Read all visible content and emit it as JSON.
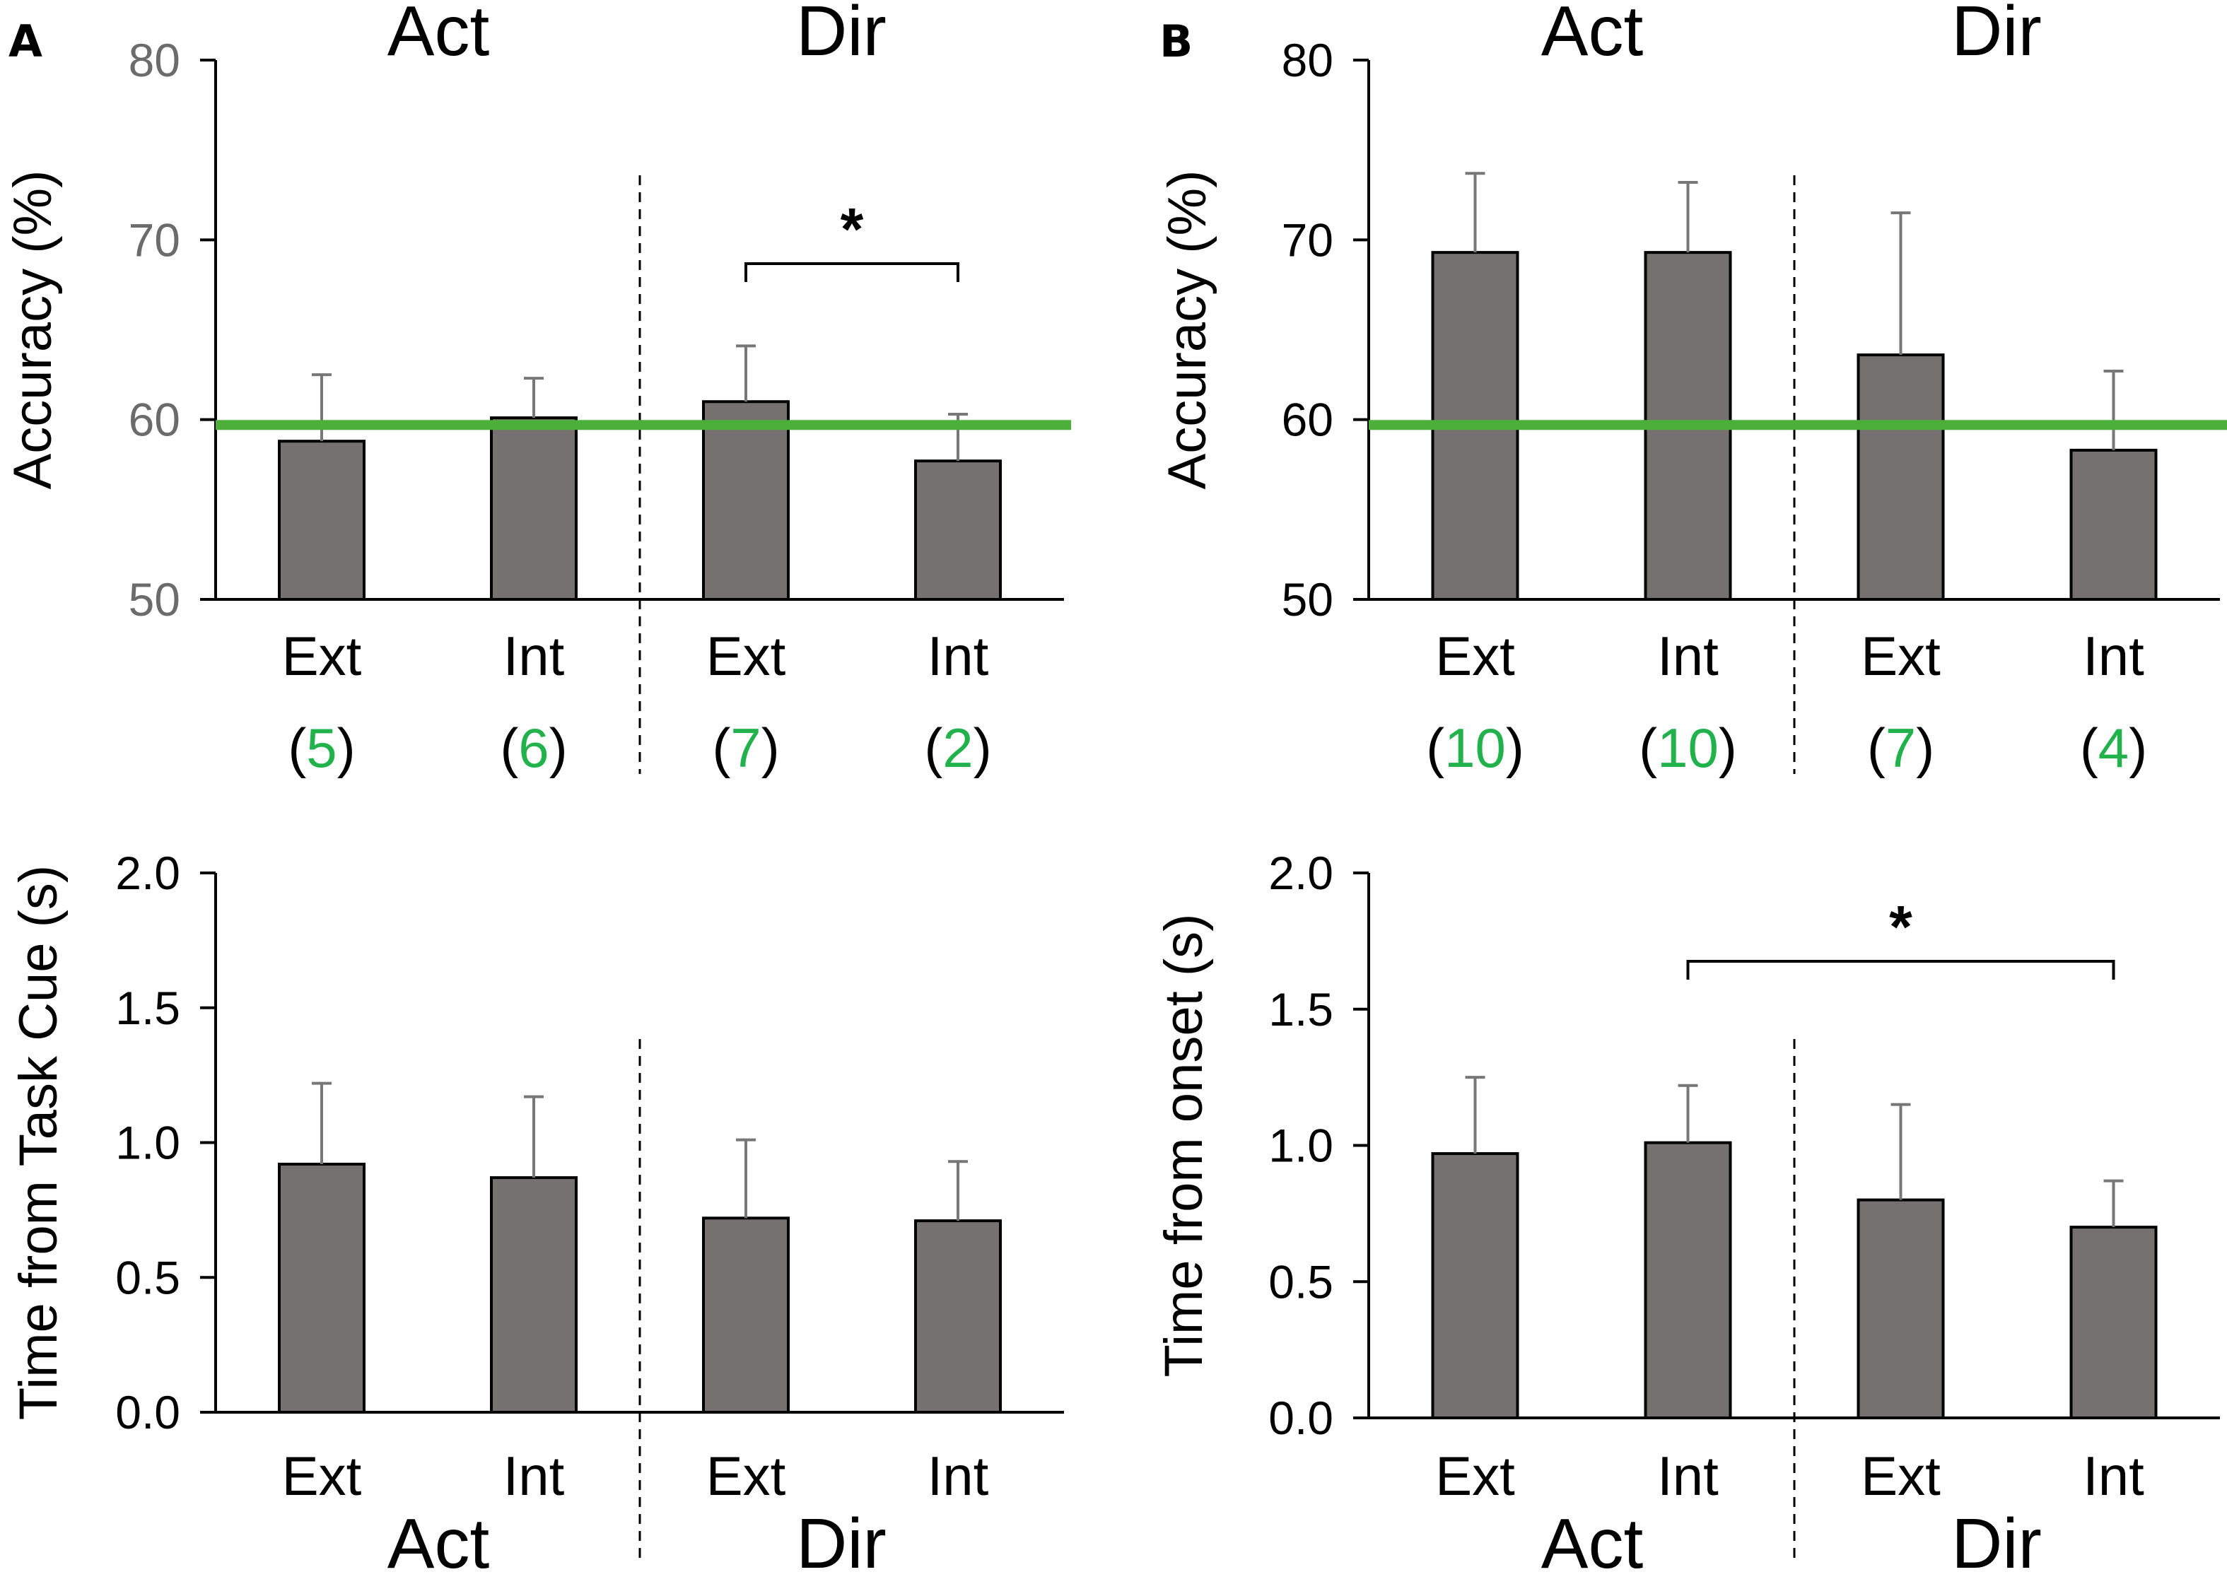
{
  "figure": {
    "panel_labels": [
      "A",
      "B"
    ],
    "colors": {
      "bar_fill": "#767171",
      "bar_stroke": "#000000",
      "chance_line": "#4caf3a",
      "count_highlight": "#22b24c",
      "ytick_top": "#6b6b6b"
    }
  },
  "chart_data": [
    {
      "id": "A-top",
      "panel": "A",
      "type": "bar",
      "categories": [
        "Ext",
        "Int",
        "Ext",
        "Int"
      ],
      "groups": [
        "Act",
        "Dir"
      ],
      "values": [
        58.8,
        60.1,
        61.0,
        57.7
      ],
      "errors": [
        3.7,
        2.2,
        3.1,
        2.6
      ],
      "counts": [
        "5",
        "6",
        "7",
        "2"
      ],
      "ylabel": "Accuracy  (%)",
      "yticks": [
        "50",
        "60",
        "70",
        "80"
      ],
      "ylim": [
        50,
        80
      ],
      "reference_line": 59.7,
      "significance": {
        "from": 2,
        "to": 3,
        "label": "*"
      }
    },
    {
      "id": "B-top",
      "panel": "B",
      "type": "bar",
      "categories": [
        "Ext",
        "Int",
        "Ext",
        "Int"
      ],
      "groups": [
        "Act",
        "Dir"
      ],
      "values": [
        69.3,
        69.3,
        63.6,
        58.3
      ],
      "errors": [
        4.4,
        3.9,
        7.9,
        4.4
      ],
      "counts": [
        "10",
        "10",
        "7",
        "4"
      ],
      "ylabel": "Accuracy  (%)",
      "yticks": [
        "50",
        "60",
        "70",
        "80"
      ],
      "ylim": [
        50,
        80
      ],
      "reference_line": 59.7,
      "significance": null
    },
    {
      "id": "A-bottom",
      "panel": "A",
      "type": "bar",
      "categories": [
        "Ext",
        "Int",
        "Ext",
        "Int"
      ],
      "groups": [
        "Act",
        "Dir"
      ],
      "values": [
        0.92,
        0.87,
        0.72,
        0.71
      ],
      "errors": [
        0.3,
        0.3,
        0.29,
        0.22
      ],
      "ylabel": "Time from Task Cue (s)",
      "yticks": [
        "0.0",
        "0.5",
        "1.0",
        "1.5",
        "2.0"
      ],
      "ylim": [
        0,
        2
      ],
      "significance": null
    },
    {
      "id": "B-bottom",
      "panel": "B",
      "type": "bar",
      "categories": [
        "Ext",
        "Int",
        "Ext",
        "Int"
      ],
      "groups": [
        "Act",
        "Dir"
      ],
      "values": [
        0.97,
        1.01,
        0.8,
        0.7
      ],
      "errors": [
        0.28,
        0.21,
        0.35,
        0.17
      ],
      "ylabel": "Time from onset (s)",
      "yticks": [
        "0.0",
        "0.5",
        "1.0",
        "1.5",
        "2.0"
      ],
      "ylim": [
        0,
        2
      ],
      "significance": {
        "from": 1,
        "to": 3,
        "label": "*"
      }
    }
  ]
}
